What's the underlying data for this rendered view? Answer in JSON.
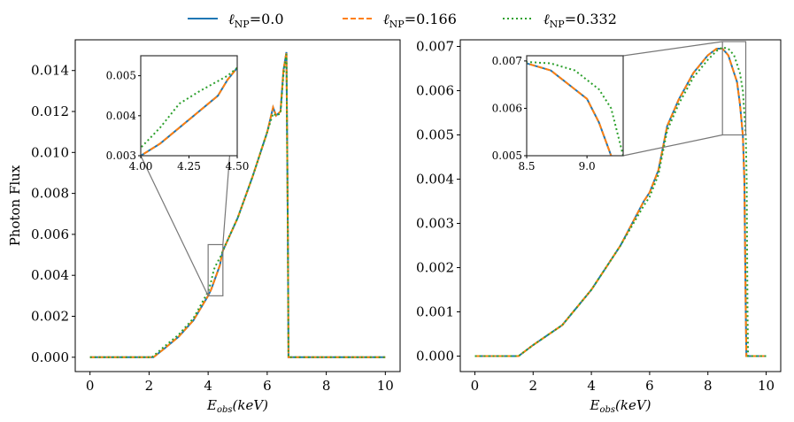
{
  "legend": {
    "placement": "top-center",
    "entries": [
      {
        "symbol": "ℓ",
        "sub": "NP",
        "value": "=0.0",
        "color": "#1f77b4",
        "style": "solid"
      },
      {
        "symbol": "ℓ",
        "sub": "NP",
        "value": "=0.166",
        "color": "#ff7f0e",
        "style": "dashed"
      },
      {
        "symbol": "ℓ",
        "sub": "NP",
        "value": "=0.332",
        "color": "#2ca02c",
        "style": "dotted"
      }
    ]
  },
  "chart_data": [
    {
      "type": "line",
      "xlabel": {
        "main": "E",
        "sub": "obs",
        "unit": "(keV)"
      },
      "ylabel": "Photon Flux",
      "xlim": [
        -0.5,
        10.5
      ],
      "ylim": [
        -0.0007,
        0.0155
      ],
      "xticks": [
        "0",
        "2",
        "4",
        "6",
        "8",
        "10"
      ],
      "yticks": [
        "0.000",
        "0.002",
        "0.004",
        "0.006",
        "0.008",
        "0.010",
        "0.012",
        "0.014"
      ],
      "grid": false,
      "series": [
        {
          "name": "ℓNP=0.0",
          "color": "#1f77b4",
          "x": [
            0,
            2.15,
            2.5,
            3,
            3.5,
            4,
            4.1,
            4.25,
            4.4,
            4.45,
            4.5,
            5,
            5.5,
            6,
            6.2,
            6.3,
            6.45,
            6.55,
            6.65,
            6.7,
            6.72,
            10
          ],
          "y": [
            0,
            0,
            0.0004,
            0.001,
            0.0018,
            0.003,
            0.0033,
            0.0039,
            0.0045,
            0.0049,
            0.0052,
            0.0068,
            0.0088,
            0.011,
            0.0122,
            0.0118,
            0.012,
            0.014,
            0.0149,
            0.006,
            0,
            0
          ]
        },
        {
          "name": "ℓNP=0.166",
          "color": "#ff7f0e",
          "x": [
            0,
            2.15,
            2.5,
            3,
            3.5,
            4,
            4.1,
            4.25,
            4.4,
            4.45,
            4.5,
            5,
            5.5,
            6,
            6.2,
            6.3,
            6.45,
            6.55,
            6.65,
            6.7,
            6.72,
            10
          ],
          "y": [
            0,
            0,
            0.0004,
            0.001,
            0.0018,
            0.003,
            0.0033,
            0.0039,
            0.0045,
            0.0049,
            0.0052,
            0.0068,
            0.0088,
            0.011,
            0.0122,
            0.0118,
            0.012,
            0.014,
            0.0149,
            0.006,
            0,
            0
          ]
        },
        {
          "name": "ℓNP=0.332",
          "color": "#2ca02c",
          "x": [
            0,
            2.1,
            2.5,
            3,
            3.5,
            4,
            4.1,
            4.2,
            4.3,
            4.45,
            4.5,
            5,
            5.5,
            6,
            6.2,
            6.3,
            6.45,
            6.55,
            6.65,
            6.7,
            6.72,
            10
          ],
          "y": [
            0,
            0,
            0.0005,
            0.0011,
            0.0019,
            0.0032,
            0.0037,
            0.0043,
            0.0046,
            0.005,
            0.0052,
            0.0068,
            0.0088,
            0.011,
            0.0119,
            0.0118,
            0.0119,
            0.0138,
            0.0148,
            0.006,
            0,
            0
          ]
        }
      ],
      "inset": {
        "xlim": [
          4.0,
          4.5
        ],
        "ylim": [
          0.003,
          0.0055
        ],
        "xticks": [
          "4.00",
          "4.25",
          "4.50"
        ],
        "yticks": [
          "0.003",
          "0.004",
          "0.005"
        ]
      }
    },
    {
      "type": "line",
      "xlabel": {
        "main": "E",
        "sub": "obs",
        "unit": "(keV)"
      },
      "ylabel": "",
      "xlim": [
        -0.5,
        10.5
      ],
      "ylim": [
        -0.00035,
        0.00715
      ],
      "xticks": [
        "0",
        "2",
        "4",
        "6",
        "8",
        "10"
      ],
      "yticks": [
        "0.000",
        "0.001",
        "0.002",
        "0.003",
        "0.004",
        "0.005",
        "0.006",
        "0.007"
      ],
      "grid": false,
      "series": [
        {
          "name": "ℓNP=0.0",
          "color": "#1f77b4",
          "x": [
            0,
            1.5,
            2,
            3,
            4,
            5,
            5.8,
            6,
            6.3,
            6.6,
            7,
            7.5,
            8,
            8.3,
            8.5,
            8.7,
            8.9,
            9.0,
            9.1,
            9.2,
            9.25,
            9.3,
            9.32,
            10
          ],
          "y": [
            0,
            0,
            0.00025,
            0.0007,
            0.0015,
            0.0025,
            0.0035,
            0.0037,
            0.0042,
            0.0052,
            0.0058,
            0.0064,
            0.0068,
            0.00695,
            0.00695,
            0.0068,
            0.0064,
            0.0062,
            0.0057,
            0.005,
            0.004,
            0.001,
            0,
            0
          ]
        },
        {
          "name": "ℓNP=0.166",
          "color": "#ff7f0e",
          "x": [
            0,
            1.5,
            2,
            3,
            4,
            5,
            5.8,
            6,
            6.3,
            6.6,
            7,
            7.5,
            8,
            8.3,
            8.5,
            8.7,
            8.9,
            9.0,
            9.1,
            9.2,
            9.25,
            9.3,
            9.32,
            10
          ],
          "y": [
            0,
            0,
            0.00025,
            0.0007,
            0.0015,
            0.0025,
            0.0035,
            0.0037,
            0.0042,
            0.0052,
            0.0058,
            0.0064,
            0.0068,
            0.00695,
            0.00695,
            0.0068,
            0.0064,
            0.0062,
            0.0057,
            0.005,
            0.004,
            0.001,
            0,
            0
          ]
        },
        {
          "name": "ℓNP=0.332",
          "color": "#2ca02c",
          "x": [
            0,
            1.5,
            2,
            3,
            4,
            5,
            5.8,
            6,
            6.3,
            6.6,
            7,
            7.5,
            8,
            8.3,
            8.5,
            8.7,
            8.9,
            9.1,
            9.2,
            9.3,
            9.33,
            9.36,
            9.38,
            10
          ],
          "y": [
            0,
            0,
            0.00025,
            0.0007,
            0.0015,
            0.0025,
            0.0034,
            0.0036,
            0.0041,
            0.0051,
            0.0057,
            0.0063,
            0.0067,
            0.0069,
            0.00698,
            0.00695,
            0.0068,
            0.0064,
            0.006,
            0.005,
            0.004,
            0.001,
            0,
            0
          ]
        }
      ],
      "inset": {
        "xlim": [
          8.5,
          9.3
        ],
        "ylim": [
          0.005,
          0.00711
        ],
        "xticks": [
          "8.5",
          "9.0"
        ],
        "yticks": [
          "0.005",
          "0.006",
          "0.007"
        ]
      }
    }
  ]
}
